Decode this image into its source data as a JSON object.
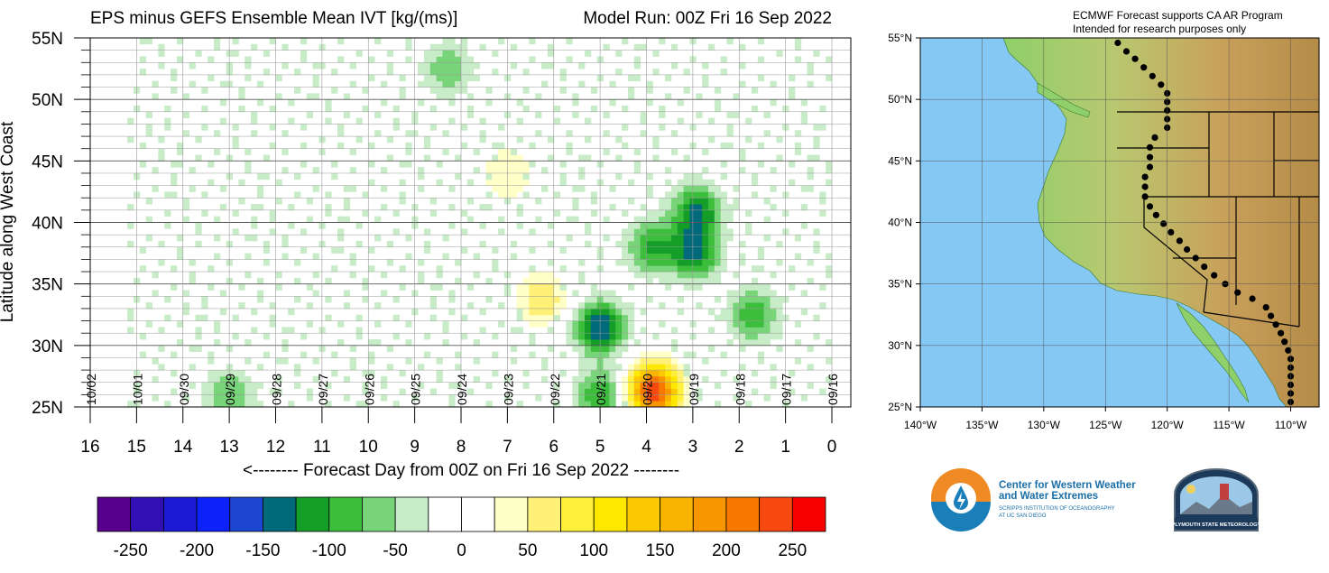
{
  "chart_data": [
    {
      "type": "heatmap",
      "title": "EPS minus GEFS Ensemble Mean IVT [kg/(ms)]",
      "subtitle": "Model Run: 00Z Fri 16 Sep 2022",
      "xlabel": "<-------- Forecast Day from 00Z on Fri 16 Sep 2022 --------",
      "ylabel": "Latitude along West Coast",
      "xlim": [
        16,
        0
      ],
      "ylim": [
        25,
        55
      ],
      "x_ticks": [
        "16",
        "15",
        "14",
        "13",
        "12",
        "11",
        "10",
        "9",
        "8",
        "7",
        "6",
        "5",
        "4",
        "3",
        "2",
        "1",
        "0"
      ],
      "y_ticks": [
        "25N",
        "30N",
        "35N",
        "40N",
        "45N",
        "50N",
        "55N"
      ],
      "date_labels": [
        "10/02",
        "10/01",
        "09/30",
        "09/29",
        "09/28",
        "09/27",
        "09/26",
        "09/25",
        "09/24",
        "09/23",
        "09/22",
        "09/21",
        "09/20",
        "09/19",
        "09/18",
        "09/17",
        "09/16"
      ],
      "grid": true,
      "features": [
        {
          "day": 3.85,
          "lat": 26.3,
          "value": 250
        },
        {
          "day": 5.0,
          "lat": 31.5,
          "value": -150
        },
        {
          "day": 6.25,
          "lat": 33.8,
          "value": 75
        },
        {
          "day": 2.9,
          "lat": 41.0,
          "value": -125
        },
        {
          "day": 2.95,
          "lat": 37.5,
          "value": -125
        },
        {
          "day": 3.9,
          "lat": 38.0,
          "value": -100
        },
        {
          "day": 1.7,
          "lat": 32.5,
          "value": -100
        },
        {
          "day": 13.0,
          "lat": 26.0,
          "value": -75
        },
        {
          "day": 5.0,
          "lat": 26.0,
          "value": -100
        },
        {
          "day": 8.3,
          "lat": 52.5,
          "value": -75
        },
        {
          "day": 7.0,
          "lat": 44.0,
          "value": 50
        }
      ]
    },
    {
      "type": "colorbar",
      "ticks": [
        "-250",
        "-200",
        "-150",
        "-100",
        "-50",
        "0",
        "50",
        "100",
        "150",
        "200",
        "250"
      ],
      "colors": [
        "#58008e",
        "#3210b6",
        "#1d1ad6",
        "#0c22f8",
        "#1c46d2",
        "#006a7a",
        "#149e28",
        "#3cbe3c",
        "#78d478",
        "#c8ecc8",
        "#ffffff",
        "#ffffff",
        "#ffffc8",
        "#fff078",
        "#fff03c",
        "#ffe800",
        "#fcc800",
        "#f8b400",
        "#f89600",
        "#f87800",
        "#f84a10",
        "#f80000"
      ]
    },
    {
      "type": "map",
      "header_line1": "ECMWF Forecast supports CA AR Program",
      "header_line2": "Intended for research purposes only",
      "lat_ticks": [
        "55°N",
        "50°N",
        "45°N",
        "40°N",
        "35°N",
        "30°N",
        "25°N"
      ],
      "lon_ticks": [
        "140°W",
        "135°W",
        "130°W",
        "125°W",
        "120°W",
        "115°W",
        "110°W"
      ],
      "transect_points": [
        {
          "lon": -124.6,
          "lat": 55.3
        },
        {
          "lon": -124.0,
          "lat": 54.6
        },
        {
          "lon": -123.3,
          "lat": 53.9
        },
        {
          "lon": -122.6,
          "lat": 53.3
        },
        {
          "lon": -121.9,
          "lat": 52.6
        },
        {
          "lon": -121.2,
          "lat": 51.9
        },
        {
          "lon": -120.5,
          "lat": 51.2
        },
        {
          "lon": -120.0,
          "lat": 50.5
        },
        {
          "lon": -120.0,
          "lat": 49.8
        },
        {
          "lon": -120.0,
          "lat": 49.1
        },
        {
          "lon": -120.0,
          "lat": 48.4
        },
        {
          "lon": -120.0,
          "lat": 47.7
        },
        {
          "lon": -121.0,
          "lat": 46.9
        },
        {
          "lon": -121.4,
          "lat": 46.1
        },
        {
          "lon": -121.4,
          "lat": 45.3
        },
        {
          "lon": -121.4,
          "lat": 44.5
        },
        {
          "lon": -121.8,
          "lat": 43.7
        },
        {
          "lon": -121.8,
          "lat": 42.9
        },
        {
          "lon": -121.8,
          "lat": 42.1
        },
        {
          "lon": -121.4,
          "lat": 41.3
        },
        {
          "lon": -120.9,
          "lat": 40.6
        },
        {
          "lon": -120.3,
          "lat": 39.9
        },
        {
          "lon": -119.7,
          "lat": 39.2
        },
        {
          "lon": -119.0,
          "lat": 38.5
        },
        {
          "lon": -118.4,
          "lat": 37.8
        },
        {
          "lon": -117.7,
          "lat": 37.1
        },
        {
          "lon": -117.0,
          "lat": 36.4
        },
        {
          "lon": -116.2,
          "lat": 35.7
        },
        {
          "lon": -115.3,
          "lat": 35.0
        },
        {
          "lon": -114.3,
          "lat": 34.3
        },
        {
          "lon": -113.1,
          "lat": 33.8
        },
        {
          "lon": -112.0,
          "lat": 33.1
        },
        {
          "lon": -111.6,
          "lat": 32.4
        },
        {
          "lon": -111.2,
          "lat": 31.7
        },
        {
          "lon": -110.8,
          "lat": 31.0
        },
        {
          "lon": -110.5,
          "lat": 30.3
        },
        {
          "lon": -110.2,
          "lat": 29.6
        },
        {
          "lon": -110.0,
          "lat": 28.9
        },
        {
          "lon": -110.0,
          "lat": 28.2
        },
        {
          "lon": -110.0,
          "lat": 27.5
        },
        {
          "lon": -110.0,
          "lat": 26.8
        },
        {
          "lon": -110.0,
          "lat": 26.1
        },
        {
          "lon": -110.0,
          "lat": 25.4
        }
      ]
    }
  ],
  "logos": {
    "cw3e_line1": "Center for Western Weather",
    "cw3e_line2": "and Water Extremes",
    "cw3e_line3": "SCRIPPS INSTITUTION OF OCEANOGRAPHY",
    "cw3e_line4": "AT UC SAN DIEGO",
    "psu_label": "PLYMOUTH STATE METEOROLOGY"
  },
  "colors": {
    "ocean": "#86c8f4",
    "land_low": "#8fd06a",
    "land_high": "#c8a05a",
    "cw3e_orange": "#f08a24",
    "cw3e_blue": "#1a7fb8"
  }
}
